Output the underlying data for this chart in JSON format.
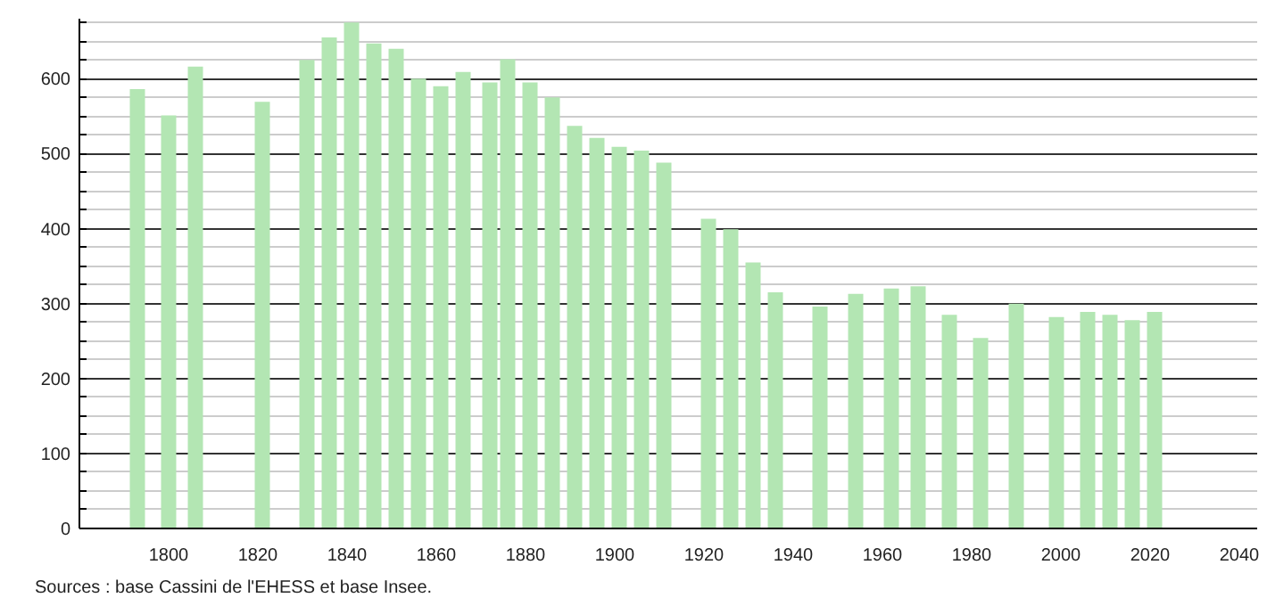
{
  "chart_data": {
    "type": "bar",
    "x": [
      1793,
      1800,
      1806,
      1821,
      1831,
      1836,
      1841,
      1846,
      1851,
      1856,
      1861,
      1866,
      1872,
      1876,
      1881,
      1886,
      1891,
      1896,
      1901,
      1906,
      1911,
      1921,
      1926,
      1931,
      1936,
      1946,
      1954,
      1962,
      1968,
      1975,
      1982,
      1990,
      1999,
      2006,
      2011,
      2016,
      2021
    ],
    "values": [
      586,
      551,
      616,
      569,
      625,
      655,
      675,
      647,
      640,
      600,
      590,
      609,
      595,
      626,
      595,
      575,
      537,
      521,
      509,
      504,
      488,
      413,
      399,
      355,
      315,
      296,
      313,
      320,
      323,
      285,
      254,
      300,
      282,
      289,
      285,
      278,
      289
    ],
    "color": "#b3e6b3",
    "xlim": [
      1780,
      2044
    ],
    "xticks": [
      1800,
      1820,
      1840,
      1860,
      1880,
      1900,
      1920,
      1940,
      1960,
      1980,
      2000,
      2020,
      2040
    ],
    "ylim": [
      0,
      680
    ],
    "yticks": [
      0,
      {
        "value": 25,
        "label": null
      },
      {
        "value": 50,
        "label": null
      },
      {
        "value": 75,
        "label": null
      },
      100,
      {
        "value": 125,
        "label": null
      },
      {
        "value": 150,
        "label": null
      },
      {
        "value": 175,
        "label": null
      },
      200,
      {
        "value": 225,
        "label": null
      },
      {
        "value": 250,
        "label": null
      },
      {
        "value": 275,
        "label": null
      },
      300,
      {
        "value": 325,
        "label": null
      },
      {
        "value": 350,
        "label": null
      },
      {
        "value": 375,
        "label": null
      },
      400,
      {
        "value": 425,
        "label": null
      },
      {
        "value": 450,
        "label": null
      },
      {
        "value": 475,
        "label": null
      },
      500,
      {
        "value": 525,
        "label": null
      },
      {
        "value": 550,
        "label": null
      },
      {
        "value": 575,
        "label": null
      },
      600,
      {
        "value": 625,
        "label": null
      },
      {
        "value": 650,
        "label": null
      },
      {
        "value": 675,
        "label": null
      }
    ],
    "grid": "y",
    "annotations": [
      "Sources : base Cassini de l'EHESS et base Insee."
    ]
  }
}
